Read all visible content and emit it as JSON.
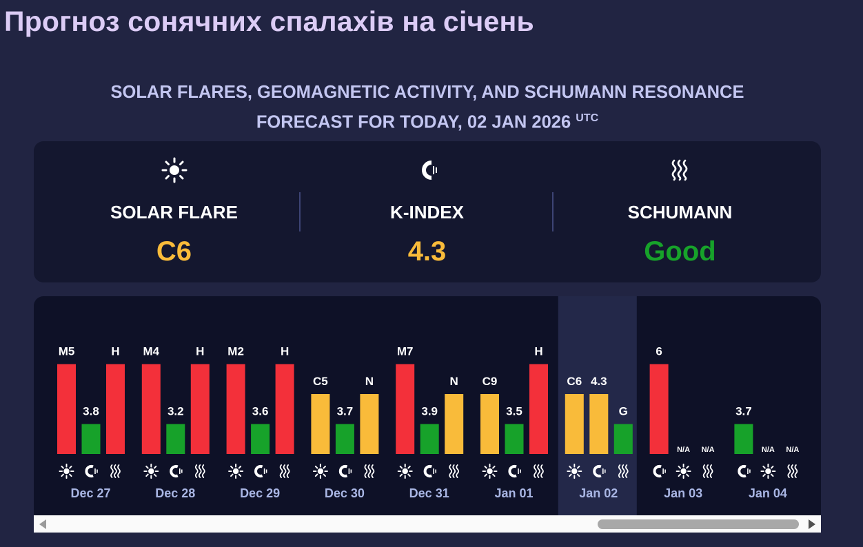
{
  "page_title": "Прогноз сонячних спалахів на січень",
  "subtitle": {
    "line1": "SOLAR FLARES, GEOMAGNETIC ACTIVITY, AND SCHUMANN RESONANCE",
    "line2": "FORECAST FOR TODAY, 02 JAN 2026",
    "superscript": "UTC"
  },
  "summary": {
    "solar": {
      "label": "SOLAR FLARE",
      "value": "C6",
      "color": "#f9bb3a",
      "icon": "sun-icon"
    },
    "kindex": {
      "label": "K-INDEX",
      "value": "4.3",
      "color": "#f9bb3a",
      "icon": "magnet-icon"
    },
    "schumann": {
      "label": "SCHUMANN",
      "value": "Good",
      "color": "#17a22a",
      "icon": "waves-icon"
    }
  },
  "colors": {
    "red": "#f3303a",
    "yellow": "#f9bb3a",
    "green": "#17a22a",
    "today_bg": "#232849"
  },
  "chart_data": {
    "type": "bar",
    "title": "",
    "series_order_note": "",
    "days": [
      {
        "date": "",
        "partial": true,
        "bars": [
          {
            "kind": "schumann",
            "value": 3,
            "label": "H",
            "color": "red"
          }
        ],
        "icons": [
          "waves-icon"
        ]
      },
      {
        "date": "Dec 27",
        "bars": [
          {
            "kind": "flare",
            "value": 3,
            "label": "M5",
            "color": "red"
          },
          {
            "kind": "kindex",
            "value": 1,
            "label": "3.8",
            "color": "green"
          },
          {
            "kind": "schumann",
            "value": 3,
            "label": "H",
            "color": "red"
          }
        ],
        "icons": [
          "sun-icon",
          "magnet-icon",
          "waves-icon"
        ]
      },
      {
        "date": "Dec 28",
        "bars": [
          {
            "kind": "flare",
            "value": 3,
            "label": "M4",
            "color": "red"
          },
          {
            "kind": "kindex",
            "value": 1,
            "label": "3.2",
            "color": "green"
          },
          {
            "kind": "schumann",
            "value": 3,
            "label": "H",
            "color": "red"
          }
        ],
        "icons": [
          "sun-icon",
          "magnet-icon",
          "waves-icon"
        ]
      },
      {
        "date": "Dec 29",
        "bars": [
          {
            "kind": "flare",
            "value": 3,
            "label": "M2",
            "color": "red"
          },
          {
            "kind": "kindex",
            "value": 1,
            "label": "3.6",
            "color": "green"
          },
          {
            "kind": "schumann",
            "value": 3,
            "label": "H",
            "color": "red"
          }
        ],
        "icons": [
          "sun-icon",
          "magnet-icon",
          "waves-icon"
        ]
      },
      {
        "date": "Dec 30",
        "bars": [
          {
            "kind": "flare",
            "value": 2,
            "label": "C5",
            "color": "yellow"
          },
          {
            "kind": "kindex",
            "value": 1,
            "label": "3.7",
            "color": "green"
          },
          {
            "kind": "schumann",
            "value": 2,
            "label": "N",
            "color": "yellow"
          }
        ],
        "icons": [
          "sun-icon",
          "magnet-icon",
          "waves-icon"
        ]
      },
      {
        "date": "Dec 31",
        "bars": [
          {
            "kind": "flare",
            "value": 3,
            "label": "M7",
            "color": "red"
          },
          {
            "kind": "kindex",
            "value": 1,
            "label": "3.9",
            "color": "green"
          },
          {
            "kind": "schumann",
            "value": 2,
            "label": "N",
            "color": "yellow"
          }
        ],
        "icons": [
          "sun-icon",
          "magnet-icon",
          "waves-icon"
        ]
      },
      {
        "date": "Jan 01",
        "bars": [
          {
            "kind": "flare",
            "value": 2,
            "label": "C9",
            "color": "yellow"
          },
          {
            "kind": "kindex",
            "value": 1,
            "label": "3.5",
            "color": "green"
          },
          {
            "kind": "schumann",
            "value": 3,
            "label": "H",
            "color": "red"
          }
        ],
        "icons": [
          "sun-icon",
          "magnet-icon",
          "waves-icon"
        ]
      },
      {
        "date": "Jan 02",
        "today": true,
        "bars": [
          {
            "kind": "flare",
            "value": 2,
            "label": "C6",
            "color": "yellow"
          },
          {
            "kind": "kindex",
            "value": 2,
            "label": "4.3",
            "color": "yellow"
          },
          {
            "kind": "schumann",
            "value": 1,
            "label": "G",
            "color": "green"
          }
        ],
        "icons": [
          "sun-icon",
          "magnet-icon",
          "waves-icon"
        ]
      },
      {
        "date": "Jan 03",
        "bars": [
          {
            "kind": "kindex",
            "value": 3,
            "label": "6",
            "color": "red"
          },
          {
            "kind": "flare",
            "value": 0,
            "label": "N/A",
            "color": "red"
          },
          {
            "kind": "schumann",
            "value": 0,
            "label": "N/A",
            "color": "red"
          }
        ],
        "icons": [
          "magnet-icon",
          "sun-icon",
          "waves-icon"
        ]
      },
      {
        "date": "Jan 04",
        "bars": [
          {
            "kind": "kindex",
            "value": 1,
            "label": "3.7",
            "color": "green"
          },
          {
            "kind": "flare",
            "value": 0,
            "label": "N/A",
            "color": "red"
          },
          {
            "kind": "schumann",
            "value": 0,
            "label": "N/A",
            "color": "red"
          }
        ],
        "icons": [
          "magnet-icon",
          "sun-icon",
          "waves-icon"
        ]
      }
    ]
  }
}
